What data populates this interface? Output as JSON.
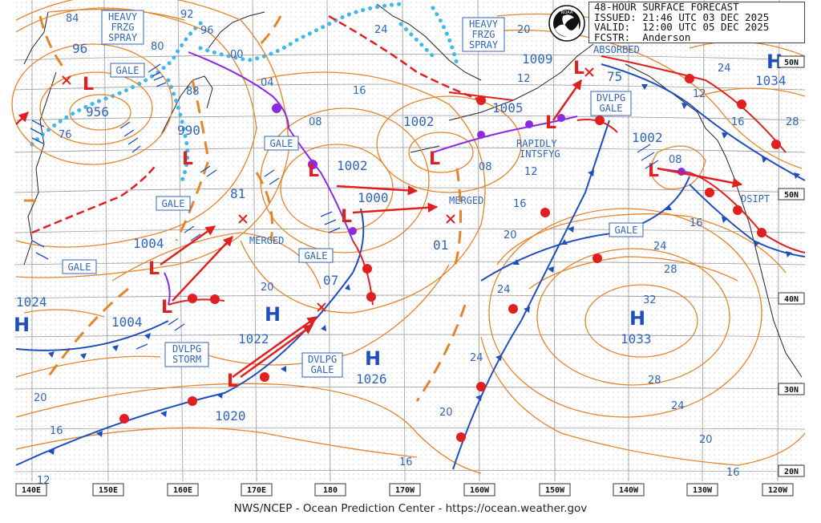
{
  "header": {
    "title": "48-HOUR SURFACE FORECAST",
    "issued": "ISSUED: 21:46 UTC 03 DEC 2025",
    "valid": "VALID:  12:00 UTC 05 DEC 2025",
    "forecaster": "FCSTR:  Anderson"
  },
  "logo_text": "NOAA",
  "footer": "NWS/NCEP - Ocean Prediction Center - https://ocean.weather.gov",
  "lon_labels": [
    "140E",
    "150E",
    "160E",
    "170E",
    "180",
    "170W",
    "160W",
    "150W",
    "140W",
    "130W",
    "120W"
  ],
  "lat_labels": [
    "50N",
    "40N",
    "30N",
    "20N"
  ],
  "boxes": [
    {
      "lines": [
        "HEAVY",
        "FRZG",
        "SPRAY"
      ]
    },
    {
      "lines": [
        "HEAVY",
        "FRZG",
        "SPRAY"
      ]
    },
    {
      "lines": [
        "GALE"
      ]
    },
    {
      "lines": [
        "GALE"
      ]
    },
    {
      "lines": [
        "GALE"
      ]
    },
    {
      "lines": [
        "GALE"
      ]
    },
    {
      "lines": [
        "GALE"
      ]
    },
    {
      "lines": [
        "GALE"
      ]
    },
    {
      "lines": [
        "DVLPG",
        "GALE"
      ]
    },
    {
      "lines": [
        "DVLPG",
        "STORM"
      ]
    },
    {
      "lines": [
        "DVLPG",
        "GALE"
      ]
    }
  ],
  "centers": [
    "956",
    "990",
    "1002",
    "1000",
    "1002",
    "1005",
    "1009",
    "1002",
    "1004",
    "1004",
    "1024",
    "1022",
    "1026",
    "1020",
    "1033",
    "1034",
    "96",
    "81",
    "07",
    "01",
    "75",
    "08"
  ],
  "highs": [
    "H",
    "H",
    "H",
    "H",
    "H"
  ],
  "notes": [
    "MERGED",
    "MERGED",
    "RAPIDLY",
    "INTSFYG",
    "ABSORBED",
    "DSIPT"
  ],
  "isobar_labels": [
    "84",
    "92",
    "96",
    "80",
    "88",
    "76",
    "00",
    "04",
    "08",
    "24",
    "16",
    "20",
    "12",
    "08",
    "12",
    "16",
    "20",
    "24",
    "28",
    "32",
    "28",
    "24",
    "20",
    "16",
    "24",
    "12",
    "16",
    "20",
    "16",
    "20",
    "12",
    "24",
    "28"
  ]
}
